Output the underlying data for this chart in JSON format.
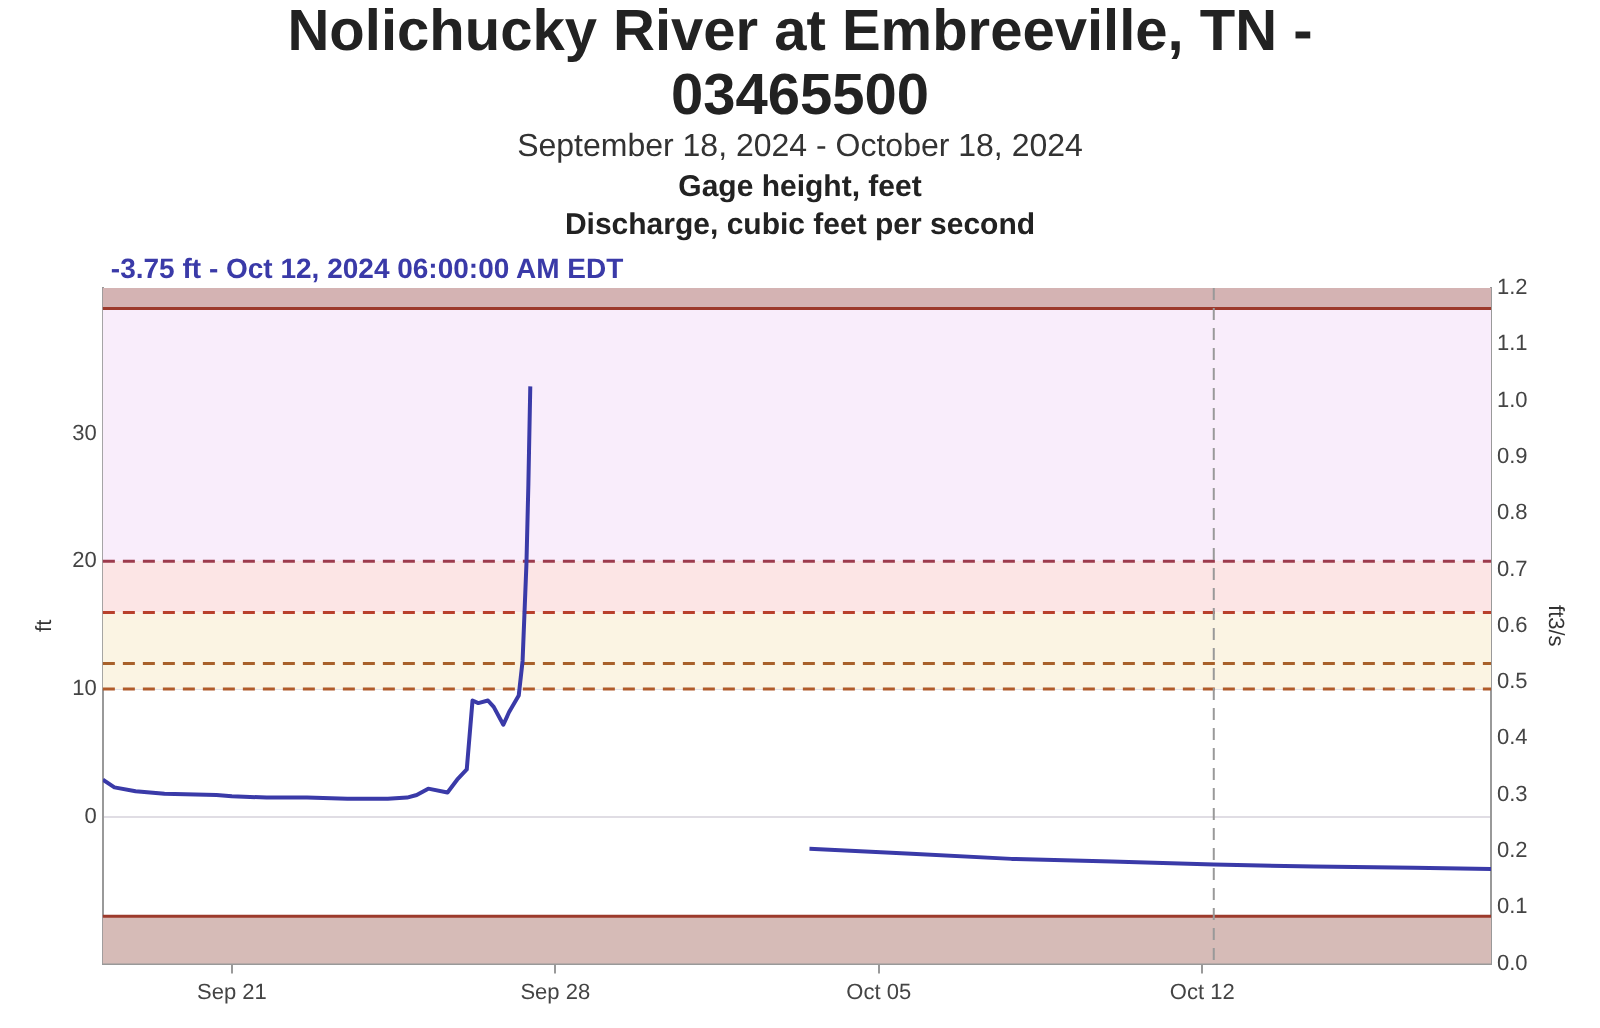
{
  "chart_data": {
    "type": "line",
    "title": "Nolichucky River at Embreeville, TN - 03465500",
    "subtitle": "September 18, 2024 - October 18, 2024",
    "annotations": [
      "Gage height, feet",
      "Discharge, cubic feet per second",
      "-3.75 ft - Oct 12, 2024 06:00:00 AM EDT"
    ],
    "ylabel": "ft",
    "y2label": "ft3/s",
    "x": [
      "2024-09-18T05:00",
      "2024-09-18T11:00",
      "2024-09-18T22:00",
      "2024-09-19T13:00",
      "2024-09-20T16:00",
      "2024-09-21T00:00",
      "2024-09-21T18:00",
      "2024-09-22T15:00",
      "2024-09-23T12:00",
      "2024-09-24T09:00",
      "2024-09-24T19:00",
      "2024-09-25T00:00",
      "2024-09-25T06:00",
      "2024-09-25T16:00",
      "2024-09-25T21:00",
      "2024-09-26T02:00",
      "2024-09-26T05:00",
      "2024-09-26T08:00",
      "2024-09-26T13:00",
      "2024-09-26T16:00",
      "2024-09-26T21:00",
      "2024-09-27T00:00",
      "2024-09-27T05:00",
      "2024-09-27T07:00",
      "2024-09-27T09:00",
      "2024-09-27T10:00",
      "2024-09-27T11:00",
      "2024-09-30T00:00",
      "2024-10-03T12:00",
      "2024-10-05T17:00",
      "2024-10-07T21:00",
      "2024-10-10T01:00",
      "2024-10-12T06:00",
      "2024-10-14T10:00",
      "2024-10-16T14:00",
      "2024-10-18T06:00"
    ],
    "series": [
      {
        "color": "#3a3aa8",
        "values": [
          2.9,
          2.3,
          2.0,
          1.8,
          1.7,
          1.6,
          1.5,
          1.5,
          1.4,
          1.4,
          1.5,
          1.7,
          2.2,
          1.9,
          2.9,
          3.7,
          9.1,
          8.9,
          9.1,
          8.6,
          7.2,
          8.2,
          9.5,
          12.2,
          19.8,
          26,
          33.7,
          null,
          -2.5,
          -2.9,
          -3.3,
          -3.5,
          -3.75,
          -3.9,
          -4.0,
          -4.1
        ]
      }
    ],
    "xlim": [
      "2024-09-18T05:00",
      "2024-10-18T06:00"
    ],
    "xticks": [
      {
        "value": "2024-09-21",
        "label": "Sep 21"
      },
      {
        "value": "2024-09-28",
        "label": "Sep 28"
      },
      {
        "value": "2024-10-05",
        "label": "Oct 05"
      },
      {
        "value": "2024-10-12",
        "label": "Oct 12"
      }
    ],
    "ylim": [
      -11.5,
      41.4
    ],
    "yticks": [
      0,
      10,
      20,
      30
    ],
    "y2lim": [
      0,
      1.2
    ],
    "y2ticks": [
      {
        "value": 0,
        "label": "0.0"
      },
      0.1,
      0.2,
      0.3,
      0.4,
      0.5,
      0.6,
      0.7,
      0.8,
      0.9,
      {
        "value": 1,
        "label": "1.0"
      },
      1.1,
      1.2
    ],
    "bands": [
      {
        "axis": "y",
        "from": 39.8,
        "to": 41.4,
        "color": "#d4b3b3"
      },
      {
        "axis": "y",
        "from": 20,
        "to": 39.8,
        "color": "#f9edfb"
      },
      {
        "axis": "y",
        "from": 16,
        "to": 20,
        "color": "#fce5e5"
      },
      {
        "axis": "y",
        "from": 10,
        "to": 16,
        "color": "#fbf4e3"
      },
      {
        "axis": "y",
        "from": -11.5,
        "to": -7.8,
        "color": "#d6bbb7"
      }
    ],
    "ref_lines": [
      {
        "axis": "y",
        "value": 39.8,
        "color": "#9c3a2c",
        "line_style": "solid"
      },
      {
        "axis": "y",
        "value": 20,
        "color": "#9c3a4c",
        "line_style": "dashed"
      },
      {
        "axis": "y",
        "value": 16,
        "color": "#b8402c",
        "line_style": "dashed"
      },
      {
        "axis": "y",
        "value": 12,
        "color": "#a8602a",
        "line_style": "dashed"
      },
      {
        "axis": "y",
        "value": 10,
        "color": "#b05a2a",
        "line_style": "dashed"
      },
      {
        "axis": "y",
        "value": -7.8,
        "color": "#9c3a2c",
        "line_style": "solid"
      },
      {
        "axis": "x",
        "value": "2024-10-12T06:00",
        "color": "#999999",
        "line_style": "dashed"
      }
    ],
    "grid": "y",
    "legend": false,
    "marker": "none",
    "line_style": "solid"
  }
}
